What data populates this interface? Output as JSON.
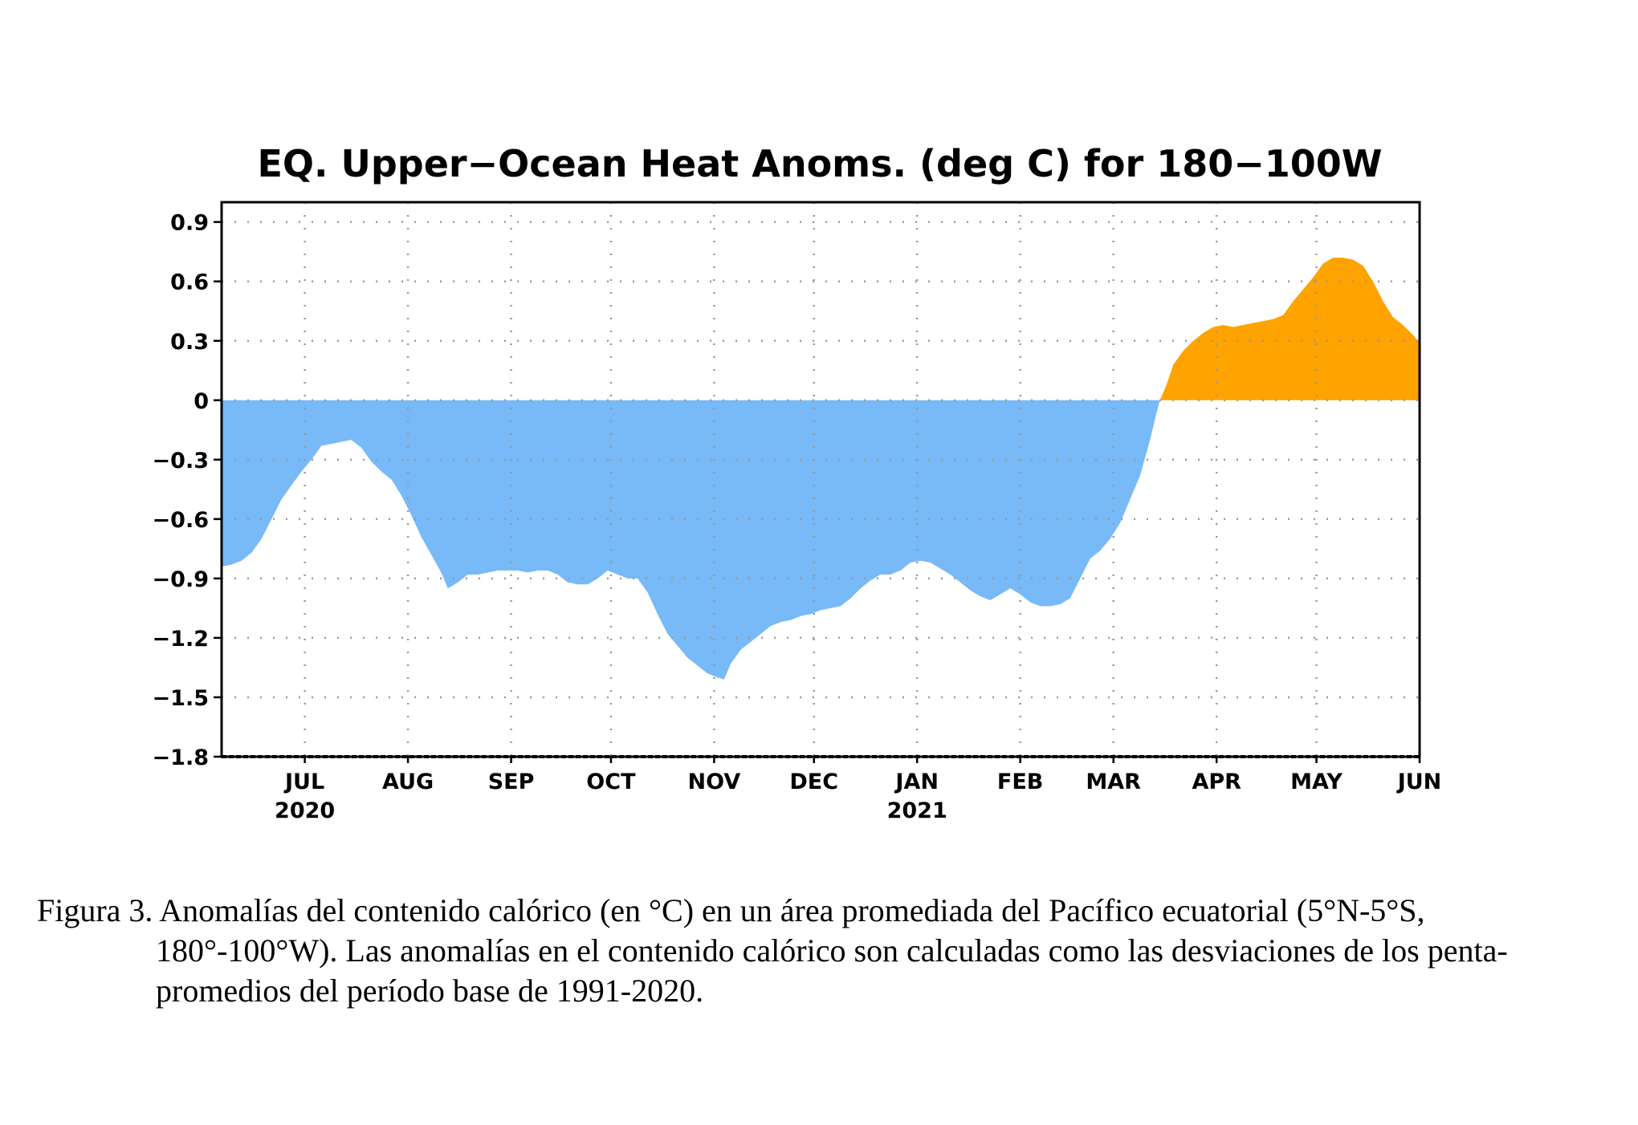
{
  "chart_data": {
    "type": "area",
    "title": "EQ. Upper−Ocean Heat Anoms. (deg C) for 180−100W",
    "xlabel": "",
    "ylabel": "",
    "ylim": [
      -1.8,
      1.0
    ],
    "yticks": [
      {
        "value": 0.9,
        "label": "0.9"
      },
      {
        "value": 0.6,
        "label": "0.6"
      },
      {
        "value": 0.3,
        "label": "0.3"
      },
      {
        "value": 0,
        "label": "0"
      },
      {
        "value": -0.3,
        "label": "−0.3"
      },
      {
        "value": -0.6,
        "label": "−0.6"
      },
      {
        "value": -0.9,
        "label": "−0.9"
      },
      {
        "value": -1.2,
        "label": "−1.2"
      },
      {
        "value": -1.5,
        "label": "−1.5"
      },
      {
        "value": -1.8,
        "label": "−1.8"
      }
    ],
    "xlim": [
      "2020-06-06",
      "2021-06-01"
    ],
    "xticks": [
      {
        "date": "2020-07-01",
        "label": "JUL",
        "year": "2020"
      },
      {
        "date": "2020-08-01",
        "label": "AUG",
        "year": ""
      },
      {
        "date": "2020-09-01",
        "label": "SEP",
        "year": ""
      },
      {
        "date": "2020-10-01",
        "label": "OCT",
        "year": ""
      },
      {
        "date": "2020-11-01",
        "label": "NOV",
        "year": ""
      },
      {
        "date": "2020-12-01",
        "label": "DEC",
        "year": ""
      },
      {
        "date": "2021-01-01",
        "label": "JAN",
        "year": "2021"
      },
      {
        "date": "2021-02-01",
        "label": "FEB",
        "year": ""
      },
      {
        "date": "2021-03-01",
        "label": "MAR",
        "year": ""
      },
      {
        "date": "2021-04-01",
        "label": "APR",
        "year": ""
      },
      {
        "date": "2021-05-01",
        "label": "MAY",
        "year": ""
      },
      {
        "date": "2021-06-01",
        "label": "JUN",
        "year": ""
      }
    ],
    "grid": true,
    "colors": {
      "positive": "#ffa300",
      "negative": "#78b9f7",
      "grid": "#999999",
      "axis": "#000000"
    },
    "series": [
      {
        "values": [
          [
            "2020-06-06",
            -0.84
          ],
          [
            "2020-06-09",
            -0.83
          ],
          [
            "2020-06-12",
            -0.81
          ],
          [
            "2020-06-15",
            -0.77
          ],
          [
            "2020-06-18",
            -0.7
          ],
          [
            "2020-06-21",
            -0.6
          ],
          [
            "2020-06-24",
            -0.5
          ],
          [
            "2020-06-27",
            -0.43
          ],
          [
            "2020-06-30",
            -0.36
          ],
          [
            "2020-07-03",
            -0.3
          ],
          [
            "2020-07-06",
            -0.23
          ],
          [
            "2020-07-09",
            -0.22
          ],
          [
            "2020-07-12",
            -0.21
          ],
          [
            "2020-07-15",
            -0.2
          ],
          [
            "2020-07-18",
            -0.24
          ],
          [
            "2020-07-21",
            -0.31
          ],
          [
            "2020-07-24",
            -0.36
          ],
          [
            "2020-07-27",
            -0.4
          ],
          [
            "2020-07-30",
            -0.48
          ],
          [
            "2020-08-02",
            -0.58
          ],
          [
            "2020-08-05",
            -0.69
          ],
          [
            "2020-08-08",
            -0.78
          ],
          [
            "2020-08-11",
            -0.87
          ],
          [
            "2020-08-13",
            -0.95
          ],
          [
            "2020-08-16",
            -0.92
          ],
          [
            "2020-08-19",
            -0.88
          ],
          [
            "2020-08-22",
            -0.88
          ],
          [
            "2020-08-25",
            -0.87
          ],
          [
            "2020-08-28",
            -0.86
          ],
          [
            "2020-08-31",
            -0.86
          ],
          [
            "2020-09-03",
            -0.86
          ],
          [
            "2020-09-06",
            -0.87
          ],
          [
            "2020-09-09",
            -0.86
          ],
          [
            "2020-09-12",
            -0.86
          ],
          [
            "2020-09-15",
            -0.88
          ],
          [
            "2020-09-18",
            -0.92
          ],
          [
            "2020-09-21",
            -0.93
          ],
          [
            "2020-09-24",
            -0.93
          ],
          [
            "2020-09-27",
            -0.9
          ],
          [
            "2020-09-30",
            -0.86
          ],
          [
            "2020-10-03",
            -0.88
          ],
          [
            "2020-10-06",
            -0.9
          ],
          [
            "2020-10-09",
            -0.9
          ],
          [
            "2020-10-12",
            -0.97
          ],
          [
            "2020-10-15",
            -1.08
          ],
          [
            "2020-10-18",
            -1.18
          ],
          [
            "2020-10-21",
            -1.24
          ],
          [
            "2020-10-24",
            -1.3
          ],
          [
            "2020-10-27",
            -1.34
          ],
          [
            "2020-10-30",
            -1.38
          ],
          [
            "2020-11-02",
            -1.4
          ],
          [
            "2020-11-04",
            -1.41
          ],
          [
            "2020-11-06",
            -1.33
          ],
          [
            "2020-11-09",
            -1.26
          ],
          [
            "2020-11-12",
            -1.22
          ],
          [
            "2020-11-15",
            -1.18
          ],
          [
            "2020-11-18",
            -1.14
          ],
          [
            "2020-11-21",
            -1.12
          ],
          [
            "2020-11-24",
            -1.11
          ],
          [
            "2020-11-27",
            -1.09
          ],
          [
            "2020-11-30",
            -1.08
          ],
          [
            "2020-12-03",
            -1.06
          ],
          [
            "2020-12-06",
            -1.05
          ],
          [
            "2020-12-09",
            -1.04
          ],
          [
            "2020-12-12",
            -1.0
          ],
          [
            "2020-12-15",
            -0.95
          ],
          [
            "2020-12-18",
            -0.91
          ],
          [
            "2020-12-21",
            -0.88
          ],
          [
            "2020-12-24",
            -0.88
          ],
          [
            "2020-12-27",
            -0.86
          ],
          [
            "2020-12-30",
            -0.82
          ],
          [
            "2021-01-02",
            -0.81
          ],
          [
            "2021-01-05",
            -0.82
          ],
          [
            "2021-01-08",
            -0.85
          ],
          [
            "2021-01-11",
            -0.88
          ],
          [
            "2021-01-14",
            -0.92
          ],
          [
            "2021-01-17",
            -0.96
          ],
          [
            "2021-01-20",
            -0.99
          ],
          [
            "2021-01-23",
            -1.01
          ],
          [
            "2021-01-26",
            -0.98
          ],
          [
            "2021-01-29",
            -0.95
          ],
          [
            "2021-02-01",
            -0.98
          ],
          [
            "2021-02-04",
            -1.02
          ],
          [
            "2021-02-07",
            -1.04
          ],
          [
            "2021-02-10",
            -1.04
          ],
          [
            "2021-02-13",
            -1.03
          ],
          [
            "2021-02-16",
            -1.0
          ],
          [
            "2021-02-19",
            -0.9
          ],
          [
            "2021-02-22",
            -0.8
          ],
          [
            "2021-02-25",
            -0.76
          ],
          [
            "2021-02-28",
            -0.7
          ],
          [
            "2021-03-03",
            -0.62
          ],
          [
            "2021-03-06",
            -0.5
          ],
          [
            "2021-03-09",
            -0.38
          ],
          [
            "2021-03-12",
            -0.2
          ],
          [
            "2021-03-14",
            -0.06
          ],
          [
            "2021-03-15",
            0.0
          ],
          [
            "2021-03-17",
            0.08
          ],
          [
            "2021-03-19",
            0.18
          ],
          [
            "2021-03-22",
            0.25
          ],
          [
            "2021-03-25",
            0.3
          ],
          [
            "2021-03-28",
            0.34
          ],
          [
            "2021-03-31",
            0.37
          ],
          [
            "2021-04-03",
            0.38
          ],
          [
            "2021-04-06",
            0.37
          ],
          [
            "2021-04-09",
            0.38
          ],
          [
            "2021-04-12",
            0.39
          ],
          [
            "2021-04-15",
            0.4
          ],
          [
            "2021-04-18",
            0.41
          ],
          [
            "2021-04-21",
            0.43
          ],
          [
            "2021-04-24",
            0.5
          ],
          [
            "2021-04-27",
            0.56
          ],
          [
            "2021-04-30",
            0.62
          ],
          [
            "2021-05-03",
            0.69
          ],
          [
            "2021-05-06",
            0.72
          ],
          [
            "2021-05-09",
            0.72
          ],
          [
            "2021-05-12",
            0.71
          ],
          [
            "2021-05-15",
            0.68
          ],
          [
            "2021-05-18",
            0.6
          ],
          [
            "2021-05-21",
            0.5
          ],
          [
            "2021-05-24",
            0.42
          ],
          [
            "2021-05-27",
            0.38
          ],
          [
            "2021-05-30",
            0.33
          ],
          [
            "2021-06-01",
            0.29
          ]
        ]
      }
    ]
  },
  "caption": "Figura 3. Anomalías del contenido calórico (en °C) en un área promediada del Pacífico ecuatorial (5°N-5°S, 180°-100°W). Las anomalías en el contenido calórico son calculadas como las desviaciones de los penta-promedios del período base de 1991-2020."
}
